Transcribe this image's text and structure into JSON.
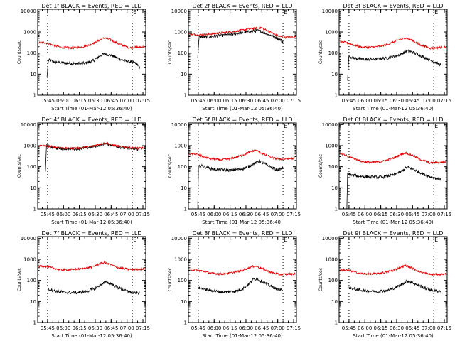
{
  "figure": {
    "colors": {
      "events": "#000000",
      "lld": "#e00000",
      "axes": "#000000",
      "background": "#ffffff"
    }
  },
  "chart_data": [
    {
      "type": "line",
      "detector": "1f",
      "title": "Det 1f BLACK = Events, RED = LLD",
      "ylabel": "Counts/sec",
      "xlabel": "Start Time (01-Mar-12 05:36:40)",
      "xticks": [
        "05:45",
        "06:00",
        "06:15",
        "06:30",
        "06:45",
        "07:00",
        "07:15"
      ],
      "yticks": [
        "1",
        "10",
        "100",
        "1000",
        "10000"
      ],
      "ylim": [
        1,
        12000
      ],
      "xlim_min": [
        -1,
        101
      ],
      "vlines_min": [
        8.33,
        88.33
      ],
      "marker": "E",
      "series": [
        {
          "name": "Events",
          "color": "#000000",
          "start": 7.8,
          "end": 95.3,
          "x": [
            8,
            9,
            15,
            25,
            35,
            45,
            52,
            57,
            62,
            68,
            75,
            82,
            88,
            92,
            95
          ],
          "y": [
            7,
            48,
            38,
            33,
            32,
            34,
            45,
            70,
            92,
            78,
            55,
            42,
            37,
            34,
            20
          ],
          "spike": [
            7.8,
            7
          ]
        },
        {
          "name": "LLD",
          "color": "#e00000",
          "start": 0,
          "end": 100,
          "x": [
            0,
            5,
            12,
            20,
            30,
            40,
            48,
            55,
            62,
            68,
            75,
            85,
            100
          ],
          "y": [
            310,
            320,
            250,
            190,
            175,
            190,
            240,
            360,
            530,
            420,
            280,
            180,
            200
          ]
        }
      ]
    },
    {
      "type": "line",
      "detector": "2f",
      "title": "Det 2f BLACK = Events, RED = LLD",
      "ylabel": "Counts/sec",
      "xlabel": "Start Time (01-Mar-12 05:36:40)",
      "xticks": [
        "05:45",
        "06:00",
        "06:15",
        "06:30",
        "06:45",
        "07:00",
        "07:15"
      ],
      "yticks": [
        "1",
        "10",
        "100",
        "1000",
        "10000"
      ],
      "ylim": [
        1,
        12000
      ],
      "xlim_min": [
        -1,
        101
      ],
      "vlines_min": [
        8.33,
        88.33
      ],
      "marker": "E",
      "series": [
        {
          "name": "Events",
          "color": "#000000",
          "start": 7.8,
          "end": 88.3,
          "x": [
            8,
            9,
            15,
            25,
            35,
            45,
            55,
            60,
            65,
            70,
            75,
            80,
            86,
            88
          ],
          "y": [
            60,
            600,
            560,
            640,
            720,
            850,
            1000,
            1100,
            1150,
            950,
            750,
            600,
            420,
            350
          ],
          "spike": [
            7.8,
            60
          ]
        },
        {
          "name": "LLD",
          "color": "#e00000",
          "start": 0,
          "end": 100,
          "x": [
            0,
            8,
            15,
            25,
            35,
            45,
            55,
            62,
            68,
            72,
            78,
            82,
            88,
            95,
            100
          ],
          "y": [
            800,
            720,
            750,
            860,
            960,
            1100,
            1350,
            1500,
            1600,
            1250,
            900,
            700,
            560,
            560,
            600
          ]
        }
      ]
    },
    {
      "type": "line",
      "detector": "3f",
      "title": "Det 3f BLACK = Events, RED = LLD",
      "ylabel": "Counts/sec",
      "xlabel": "Start Time (01-Mar-12 05:36:40)",
      "xticks": [
        "05:45",
        "06:00",
        "06:15",
        "06:30",
        "06:45",
        "07:00",
        "07:15"
      ],
      "yticks": [
        "1",
        "10",
        "100",
        "1000",
        "10000"
      ],
      "ylim": [
        1,
        12000
      ],
      "xlim_min": [
        -1,
        101
      ],
      "vlines_min": [
        8.33,
        88.33
      ],
      "marker": "E",
      "series": [
        {
          "name": "Events",
          "color": "#000000",
          "start": 7,
          "end": 95.3,
          "x": [
            7,
            8,
            15,
            25,
            35,
            45,
            52,
            58,
            63,
            68,
            75,
            82,
            88,
            92,
            95
          ],
          "y": [
            5,
            70,
            55,
            50,
            52,
            58,
            70,
            90,
            130,
            110,
            80,
            55,
            40,
            32,
            27
          ],
          "spike": [
            7,
            5
          ]
        },
        {
          "name": "LLD",
          "color": "#e00000",
          "start": 0,
          "end": 100,
          "x": [
            0,
            5,
            12,
            20,
            30,
            40,
            48,
            55,
            62,
            68,
            75,
            85,
            100
          ],
          "y": [
            330,
            320,
            250,
            190,
            190,
            220,
            290,
            420,
            520,
            400,
            250,
            170,
            195
          ]
        }
      ]
    },
    {
      "type": "line",
      "detector": "4f",
      "title": "Det 4f BLACK = Events, RED = LLD",
      "ylabel": "Counts/sec",
      "xlabel": "Start Time (01-Mar-12 05:36:40)",
      "xticks": [
        "05:45",
        "06:00",
        "06:15",
        "06:30",
        "06:45",
        "07:00",
        "07:15"
      ],
      "yticks": [
        "1",
        "10",
        "100",
        "1000",
        "10000"
      ],
      "ylim": [
        1,
        12000
      ],
      "xlim_min": [
        -1,
        101
      ],
      "vlines_min": [
        8.33,
        88.33
      ],
      "marker": "E",
      "series": [
        {
          "name": "Events",
          "color": "#000000",
          "start": 6.3,
          "end": 95.3,
          "x": [
            6.3,
            7,
            10,
            20,
            30,
            40,
            50,
            57,
            62,
            66,
            72,
            80,
            88,
            95
          ],
          "y": [
            60,
            1050,
            870,
            720,
            700,
            740,
            860,
            1050,
            1250,
            1150,
            950,
            790,
            720,
            670
          ],
          "spike": [
            6.3,
            60
          ]
        },
        {
          "name": "LLD",
          "color": "#e00000",
          "start": 0,
          "end": 100,
          "x": [
            0,
            5,
            10,
            20,
            30,
            40,
            50,
            57,
            62,
            66,
            72,
            80,
            88,
            100
          ],
          "y": [
            980,
            980,
            920,
            790,
            740,
            790,
            920,
            1150,
            1350,
            1200,
            1000,
            860,
            780,
            770
          ]
        }
      ]
    },
    {
      "type": "line",
      "detector": "5f",
      "title": "Det 5f BLACK = Events, RED = LLD",
      "ylabel": "Counts/sec",
      "xlabel": "Start Time (01-Mar-12 05:36:40)",
      "xticks": [
        "05:45",
        "06:00",
        "06:15",
        "06:30",
        "06:45",
        "07:00",
        "07:15"
      ],
      "yticks": [
        "1",
        "10",
        "100",
        "1000",
        "10000"
      ],
      "ylim": [
        1,
        12000
      ],
      "xlim_min": [
        -1,
        101
      ],
      "vlines_min": [
        8.33,
        88.33
      ],
      "marker": "E",
      "series": [
        {
          "name": "Events",
          "color": "#000000",
          "start": 7.8,
          "end": 88.3,
          "x": [
            7.8,
            8.2,
            12,
            20,
            30,
            40,
            50,
            57,
            62,
            66,
            72,
            78,
            83,
            88
          ],
          "y": [
            1,
            100,
            110,
            80,
            70,
            68,
            80,
            110,
            150,
            190,
            130,
            90,
            70,
            85
          ],
          "spike": [
            7.8,
            1
          ]
        },
        {
          "name": "LLD",
          "color": "#e00000",
          "start": 0,
          "end": 100,
          "x": [
            0,
            5,
            12,
            20,
            30,
            40,
            50,
            57,
            62,
            66,
            72,
            80,
            88,
            100
          ],
          "y": [
            400,
            410,
            320,
            240,
            210,
            250,
            350,
            500,
            600,
            500,
            350,
            250,
            230,
            250
          ]
        }
      ]
    },
    {
      "type": "line",
      "detector": "6f",
      "title": "Det 6f BLACK = Events, RED = LLD",
      "ylabel": "Counts/sec",
      "xlabel": "Start Time (01-Mar-12 05:36:40)",
      "xticks": [
        "05:45",
        "06:00",
        "06:15",
        "06:30",
        "06:45",
        "07:00",
        "07:15"
      ],
      "yticks": [
        "1",
        "10",
        "100",
        "1000",
        "10000"
      ],
      "ylim": [
        1,
        12000
      ],
      "xlim_min": [
        -1,
        101
      ],
      "vlines_min": [
        8.33,
        88.33
      ],
      "marker": "E",
      "series": [
        {
          "name": "Events",
          "color": "#000000",
          "start": 6.3,
          "end": 95.3,
          "x": [
            6.3,
            6.8,
            10,
            20,
            30,
            40,
            50,
            58,
            63,
            68,
            75,
            82,
            88,
            95
          ],
          "y": [
            1,
            50,
            40,
            35,
            32,
            32,
            40,
            60,
            95,
            80,
            55,
            38,
            30,
            25
          ],
          "spike": [
            6.3,
            1
          ]
        },
        {
          "name": "LLD",
          "color": "#e00000",
          "start": 0,
          "end": 100,
          "x": [
            0,
            5,
            12,
            20,
            30,
            40,
            50,
            57,
            62,
            68,
            75,
            85,
            100
          ],
          "y": [
            400,
            350,
            260,
            180,
            160,
            180,
            250,
            380,
            450,
            350,
            230,
            150,
            170
          ]
        }
      ]
    },
    {
      "type": "line",
      "detector": "7f",
      "title": "Det 7f BLACK = Events, RED = LLD",
      "ylabel": "Counts/sec",
      "xlabel": "Start Time (01-Mar-12 05:36:40)",
      "xticks": [
        "05:45",
        "06:00",
        "06:15",
        "06:30",
        "06:45",
        "07:00",
        "07:15"
      ],
      "yticks": [
        "1",
        "10",
        "100",
        "1000",
        "10000"
      ],
      "ylim": [
        1,
        12000
      ],
      "xlim_min": [
        -1,
        101
      ],
      "vlines_min": [
        8.33,
        88.33
      ],
      "marker": "E",
      "series": [
        {
          "name": "Events",
          "color": "#000000",
          "start": 8.3,
          "end": 95.3,
          "x": [
            8.3,
            15,
            25,
            35,
            45,
            52,
            58,
            63,
            68,
            75,
            82,
            88,
            95
          ],
          "y": [
            40,
            32,
            27,
            26,
            30,
            40,
            60,
            85,
            70,
            45,
            32,
            27,
            25
          ]
        },
        {
          "name": "LLD",
          "color": "#e00000",
          "start": 0,
          "end": 100,
          "x": [
            0,
            5,
            12,
            20,
            30,
            40,
            50,
            57,
            62,
            68,
            75,
            85,
            100
          ],
          "y": [
            450,
            480,
            400,
            320,
            320,
            350,
            430,
            600,
            700,
            560,
            400,
            330,
            350
          ]
        }
      ]
    },
    {
      "type": "line",
      "detector": "8f",
      "title": "Det 8f BLACK = Events, RED = LLD",
      "ylabel": "Counts/sec",
      "xlabel": "Start Time (01-Mar-12 05:36:40)",
      "xticks": [
        "05:45",
        "06:00",
        "06:15",
        "06:30",
        "06:45",
        "07:00",
        "07:15"
      ],
      "yticks": [
        "1",
        "10",
        "100",
        "1000",
        "10000"
      ],
      "ylim": [
        1,
        12000
      ],
      "xlim_min": [
        -1,
        101
      ],
      "vlines_min": [
        8.33,
        88.33
      ],
      "marker": "E",
      "series": [
        {
          "name": "Events",
          "color": "#000000",
          "start": 8.3,
          "end": 88.3,
          "x": [
            8.3,
            15,
            25,
            35,
            45,
            52,
            57,
            60,
            63,
            68,
            75,
            82,
            88
          ],
          "y": [
            45,
            38,
            30,
            28,
            32,
            45,
            75,
            110,
            120,
            90,
            60,
            40,
            35
          ]
        },
        {
          "name": "LLD",
          "color": "#e00000",
          "start": 0,
          "end": 100,
          "x": [
            0,
            5,
            12,
            20,
            30,
            40,
            50,
            57,
            62,
            68,
            75,
            85,
            100
          ],
          "y": [
            320,
            320,
            280,
            220,
            200,
            230,
            300,
            420,
            480,
            380,
            260,
            190,
            210
          ]
        }
      ]
    },
    {
      "type": "line",
      "detector": "9f",
      "title": "Det 9f BLACK = Events, RED = LLD",
      "ylabel": "Counts/sec",
      "xlabel": "Start Time (01-Mar-12 05:36:40)",
      "xticks": [
        "05:45",
        "06:00",
        "06:15",
        "06:30",
        "06:45",
        "07:00",
        "07:15"
      ],
      "yticks": [
        "1",
        "10",
        "100",
        "1000",
        "10000"
      ],
      "ylim": [
        1,
        12000
      ],
      "xlim_min": [
        -1,
        101
      ],
      "vlines_min": [
        8.33,
        88.33
      ],
      "marker": "E",
      "series": [
        {
          "name": "Events",
          "color": "#000000",
          "start": 8.3,
          "end": 95.3,
          "x": [
            8.3,
            15,
            25,
            35,
            45,
            52,
            58,
            63,
            68,
            75,
            82,
            88,
            95
          ],
          "y": [
            45,
            38,
            32,
            30,
            34,
            45,
            65,
            95,
            80,
            55,
            40,
            33,
            30
          ]
        },
        {
          "name": "LLD",
          "color": "#e00000",
          "start": 0,
          "end": 100,
          "x": [
            0,
            5,
            12,
            20,
            30,
            40,
            50,
            57,
            62,
            68,
            75,
            85,
            100
          ],
          "y": [
            300,
            310,
            270,
            210,
            200,
            230,
            300,
            420,
            500,
            380,
            260,
            190,
            200
          ]
        }
      ]
    }
  ]
}
